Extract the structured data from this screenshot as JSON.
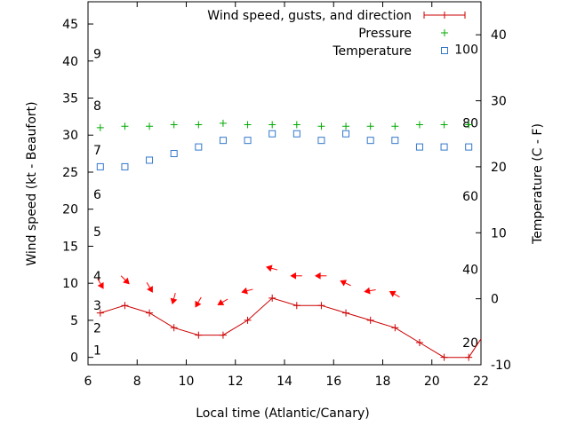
{
  "chart_data": {
    "type": "line",
    "xlabel": "Local time (Atlantic/Canary)",
    "ylabel_left": "Wind speed (kt - Beaufort)",
    "ylabel_right": "Temperature (C - F)",
    "x_range": [
      6,
      22
    ],
    "y_left_range": [
      -1,
      48
    ],
    "y_right_range": [
      -10,
      45
    ],
    "x_ticks": [
      6,
      8,
      10,
      12,
      14,
      16,
      18,
      20,
      22
    ],
    "y_left_ticks": [
      0,
      5,
      10,
      15,
      20,
      25,
      30,
      35,
      40,
      45
    ],
    "y_right_ticks": [
      -10,
      0,
      10,
      20,
      30,
      40
    ],
    "beaufort_labels": [
      {
        "label": "1",
        "kt": 1.0
      },
      {
        "label": "2",
        "kt": 4.0
      },
      {
        "label": "3",
        "kt": 7.0
      },
      {
        "label": "4",
        "kt": 11.0
      },
      {
        "label": "5",
        "kt": 17.0
      },
      {
        "label": "6",
        "kt": 22.0
      },
      {
        "label": "7",
        "kt": 28.0
      },
      {
        "label": "8",
        "kt": 34.0
      },
      {
        "label": "9",
        "kt": 41.0
      }
    ],
    "fahrenheit_labels": [
      {
        "label": "20",
        "f": 20
      },
      {
        "label": "40",
        "f": 40
      },
      {
        "label": "60",
        "f": 60
      },
      {
        "label": "80",
        "f": 80
      },
      {
        "label": "100",
        "f": 100
      }
    ],
    "grid": false,
    "legend_position": "top-right",
    "series": [
      {
        "name": "Wind speed, gusts, and direction",
        "color": "#cc0000",
        "marker": "plus-line",
        "x": [
          6.5,
          7.5,
          8.5,
          9.5,
          10.5,
          11.5,
          12.5,
          13.5,
          14.5,
          15.5,
          16.5,
          17.5,
          18.5,
          19.5,
          20.5,
          21.5,
          22.0
        ],
        "values": [
          6,
          7,
          6,
          4,
          3,
          3,
          5,
          8,
          7,
          7,
          6,
          5,
          4,
          2,
          0,
          0,
          2.5
        ]
      },
      {
        "name": "Pressure",
        "color": "#00aa00",
        "marker": "plus",
        "x": [
          6.5,
          7.5,
          8.5,
          9.5,
          10.5,
          11.5,
          12.5,
          13.5,
          14.5,
          15.5,
          16.5,
          17.5,
          18.5,
          19.5,
          20.5,
          21.5
        ],
        "values": [
          31,
          31.2,
          31.2,
          31.4,
          31.4,
          31.6,
          31.4,
          31.4,
          31.4,
          31.2,
          31.2,
          31.2,
          31.2,
          31.4,
          31.4,
          31.4
        ]
      },
      {
        "name": "Temperature",
        "color": "#3377cc",
        "marker": "square",
        "axis": "right",
        "x": [
          6.5,
          7.5,
          8.5,
          9.5,
          10.5,
          11.5,
          12.5,
          13.5,
          14.5,
          15.5,
          16.5,
          17.5,
          18.5,
          19.5,
          20.5,
          21.5
        ],
        "values": [
          20,
          20,
          21,
          22,
          23,
          24,
          24,
          25,
          25,
          24,
          25,
          24,
          24,
          23,
          23,
          23
        ]
      }
    ],
    "wind_arrows": {
      "color": "#ff0000",
      "x": [
        6.5,
        7.5,
        8.5,
        9.5,
        10.5,
        11.5,
        12.5,
        13.5,
        14.5,
        15.5,
        16.5,
        17.5,
        18.5
      ],
      "kt": [
        10,
        10.5,
        9.5,
        8,
        7.5,
        7.5,
        9,
        12,
        11,
        11,
        10,
        9,
        8.5
      ],
      "direction_deg": [
        330,
        315,
        330,
        15,
        30,
        60,
        75,
        105,
        90,
        90,
        115,
        80,
        120
      ]
    }
  }
}
